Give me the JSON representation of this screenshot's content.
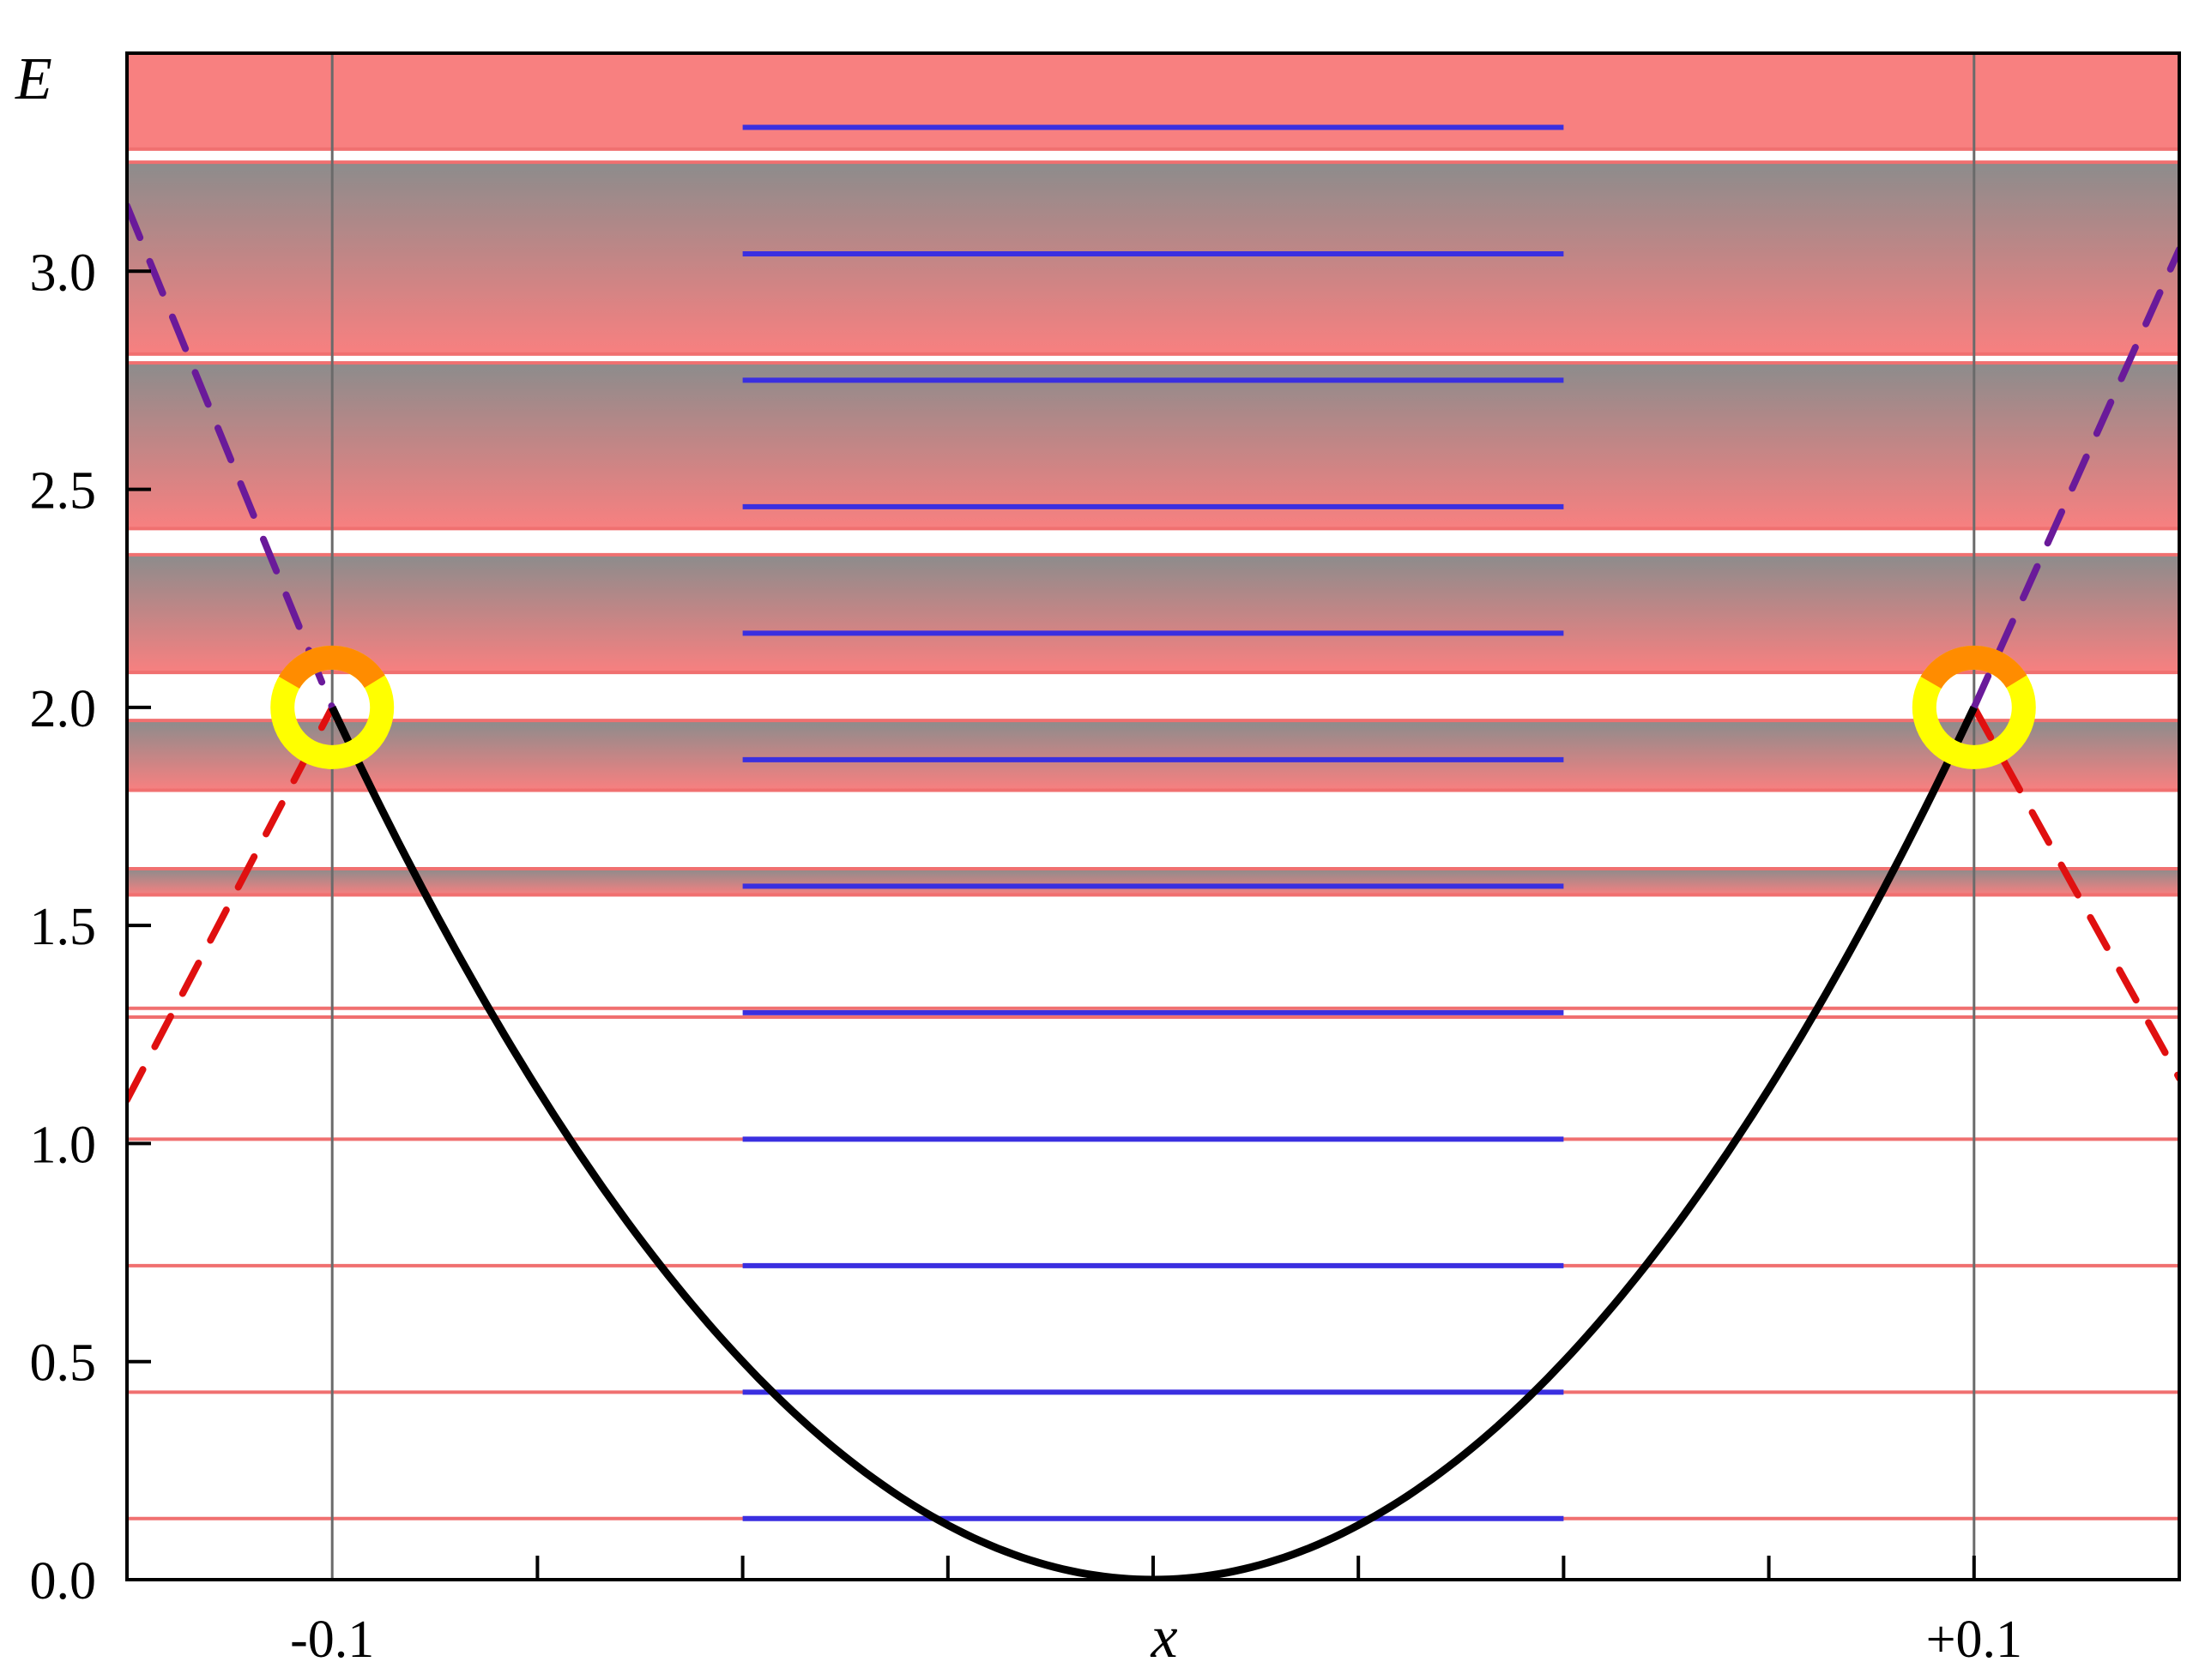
{
  "chart_data": {
    "type": "line",
    "xlabel": "x",
    "ylabel": "E",
    "xlim": [
      -0.125,
      0.125
    ],
    "ylim": [
      0.0,
      3.5
    ],
    "x_ticks": [
      {
        "value": -0.1,
        "label": "-0.1"
      },
      {
        "value": 0.1,
        "label": "+0.1"
      }
    ],
    "x_minor_ticks": [
      -0.125,
      -0.075,
      -0.05,
      -0.025,
      0.0,
      0.025,
      0.05,
      0.075,
      0.1,
      0.125
    ],
    "y_ticks": [
      {
        "value": 0.0,
        "label": "0.0"
      },
      {
        "value": 0.5,
        "label": "0.5"
      },
      {
        "value": 1.0,
        "label": "1.0"
      },
      {
        "value": 1.5,
        "label": "1.5"
      },
      {
        "value": 2.0,
        "label": "2.0"
      },
      {
        "value": 2.5,
        "label": "2.5"
      },
      {
        "value": 3.0,
        "label": "3.0"
      }
    ],
    "potential_curve": {
      "description": "parabolic well E = 200 x^2 for |x| <= 0.1",
      "x": [
        -0.1,
        -0.09,
        -0.08,
        -0.07,
        -0.06,
        -0.05,
        -0.04,
        -0.03,
        -0.02,
        -0.01,
        0.0,
        0.01,
        0.02,
        0.03,
        0.04,
        0.05,
        0.06,
        0.07,
        0.08,
        0.09,
        0.1
      ],
      "y": [
        2.0,
        1.62,
        1.28,
        0.98,
        0.72,
        0.5,
        0.32,
        0.18,
        0.08,
        0.02,
        0.0,
        0.02,
        0.08,
        0.18,
        0.32,
        0.5,
        0.72,
        0.98,
        1.28,
        1.62,
        2.0
      ],
      "color": "#000000"
    },
    "vertical_lines": [
      -0.1,
      0.1
    ],
    "blue_levels": {
      "x_range": [
        -0.05,
        0.05
      ],
      "energies": [
        0.14,
        0.43,
        0.72,
        1.01,
        1.3,
        1.59,
        1.88,
        2.17,
        2.46,
        2.75,
        3.04,
        3.33
      ],
      "color": "#3a2fe0"
    },
    "red_levels": {
      "energies": [
        0.14,
        0.43,
        0.72,
        1.01,
        1.29,
        1.31,
        1.57,
        1.63,
        1.81,
        1.97,
        2.08,
        2.35,
        2.41,
        2.79,
        2.81,
        3.25,
        3.28
      ],
      "color": "#f07070"
    },
    "bands": [
      {
        "from": 1.57,
        "to": 1.63
      },
      {
        "from": 1.81,
        "to": 1.97
      },
      {
        "from": 2.08,
        "to": 2.35
      },
      {
        "from": 2.41,
        "to": 2.79
      },
      {
        "from": 2.81,
        "to": 3.25
      },
      {
        "from": 3.28,
        "to": 3.5
      }
    ],
    "band_colors": {
      "fill": "#f88080",
      "shade": "#8c8c8c"
    },
    "dashed_branches": [
      {
        "color": "#e01010",
        "x": [
          -0.125,
          -0.1
        ],
        "y": [
          1.1,
          2.0
        ]
      },
      {
        "color": "#e01010",
        "x": [
          0.1,
          0.125
        ],
        "y": [
          2.0,
          1.15
        ]
      },
      {
        "color": "#6a1a9a",
        "x": [
          -0.125,
          -0.1
        ],
        "y": [
          3.15,
          2.0
        ]
      },
      {
        "color": "#6a1a9a",
        "x": [
          0.1,
          0.125
        ],
        "y": [
          2.0,
          3.05
        ]
      }
    ],
    "markers": [
      {
        "x": -0.1,
        "y": 2.0
      },
      {
        "x": 0.1,
        "y": 2.0
      }
    ],
    "marker_colors": {
      "outer": "#ffff00",
      "inner": "#ff8c00"
    },
    "grid": false,
    "legend": "none"
  }
}
